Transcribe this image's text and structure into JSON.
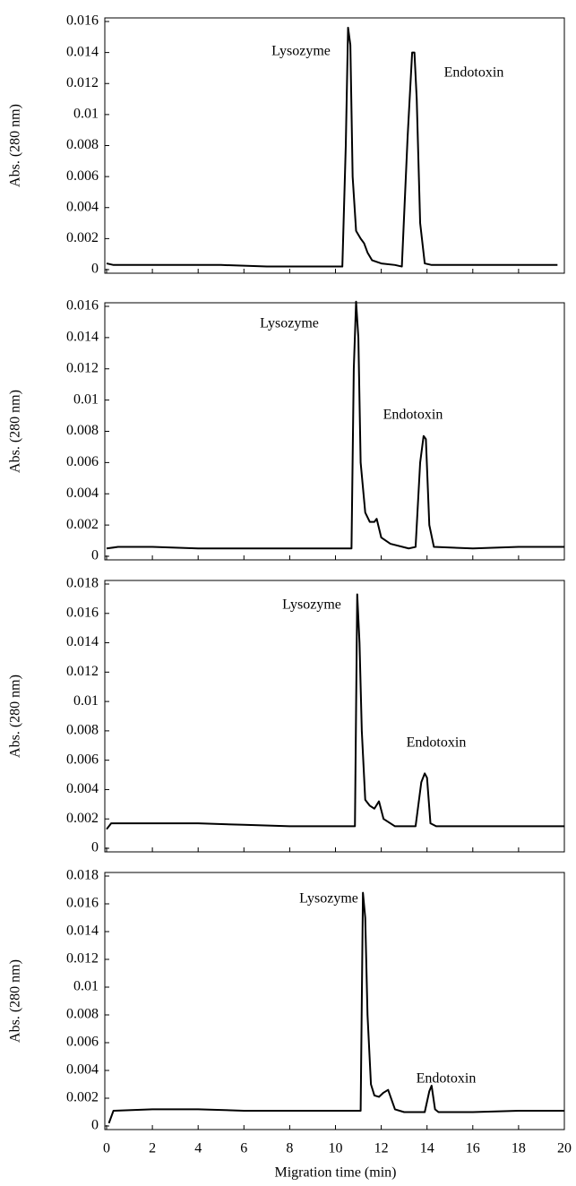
{
  "chart_data": [
    {
      "type": "line",
      "ylabel": "Abs. (280 nm)",
      "ylim": [
        0,
        0.016
      ],
      "yticks": [
        0,
        0.002,
        0.004,
        0.006,
        0.008,
        0.01,
        0.012,
        0.014,
        0.016
      ],
      "xlim": [
        0,
        20
      ],
      "xticks": [
        0,
        2,
        4,
        6,
        8,
        10,
        12,
        14,
        16,
        18,
        20
      ],
      "annotations": [
        "Lysozyme",
        "Endotoxin"
      ],
      "series": [
        {
          "color": "#000000",
          "x": [
            0,
            0.3,
            1,
            3,
            5,
            7,
            9,
            10.3,
            10.45,
            10.55,
            10.65,
            10.75,
            10.9,
            11.1,
            11.25,
            11.4,
            11.6,
            12,
            12.6,
            12.9,
            13.15,
            13.35,
            13.45,
            13.55,
            13.7,
            13.9,
            14.2,
            15,
            17,
            19,
            19.7
          ],
          "values": [
            0.0004,
            0.0003,
            0.0003,
            0.0003,
            0.0003,
            0.0002,
            0.0002,
            0.0002,
            0.008,
            0.0156,
            0.0145,
            0.006,
            0.0025,
            0.002,
            0.0017,
            0.0011,
            0.0006,
            0.0004,
            0.0003,
            0.0002,
            0.0085,
            0.014,
            0.014,
            0.011,
            0.003,
            0.0004,
            0.0003,
            0.0003,
            0.0003,
            0.0003,
            0.0003
          ]
        }
      ]
    },
    {
      "type": "line",
      "ylabel": "Abs. (280 nm)",
      "ylim": [
        0,
        0.016
      ],
      "yticks": [
        0,
        0.002,
        0.004,
        0.006,
        0.008,
        0.01,
        0.012,
        0.014,
        0.016
      ],
      "xlim": [
        0,
        20
      ],
      "xticks": [
        0,
        2,
        4,
        6,
        8,
        10,
        12,
        14,
        16,
        18,
        20
      ],
      "annotations": [
        "Lysozyme",
        "Endotoxin"
      ],
      "series": [
        {
          "color": "#000000",
          "x": [
            0,
            0.5,
            2,
            4,
            6,
            8,
            10,
            10.7,
            10.8,
            10.9,
            11,
            11.1,
            11.3,
            11.5,
            11.7,
            11.8,
            12,
            12.4,
            13.2,
            13.5,
            13.7,
            13.85,
            13.95,
            14.1,
            14.3,
            16,
            18,
            19,
            20
          ],
          "values": [
            0.0005,
            0.0006,
            0.0006,
            0.0005,
            0.0005,
            0.0005,
            0.0005,
            0.0005,
            0.012,
            0.0163,
            0.014,
            0.006,
            0.0028,
            0.0022,
            0.0022,
            0.0024,
            0.0012,
            0.0008,
            0.0005,
            0.0006,
            0.006,
            0.0077,
            0.0075,
            0.002,
            0.0006,
            0.0005,
            0.0006,
            0.0006,
            0.0006
          ]
        }
      ]
    },
    {
      "type": "line",
      "ylabel": "Abs. (280 nm)",
      "ylim": [
        0,
        0.018
      ],
      "yticks": [
        0,
        0.002,
        0.004,
        0.006,
        0.008,
        0.01,
        0.012,
        0.014,
        0.016,
        0.018
      ],
      "xlim": [
        0,
        20
      ],
      "xticks": [
        0,
        2,
        4,
        6,
        8,
        10,
        12,
        14,
        16,
        18,
        20
      ],
      "annotations": [
        "Lysozyme",
        "Endotoxin"
      ],
      "series": [
        {
          "color": "#000000",
          "x": [
            0,
            0.2,
            2,
            4,
            6,
            8,
            10,
            10.85,
            10.95,
            11.05,
            11.15,
            11.3,
            11.5,
            11.7,
            11.9,
            12.1,
            12.6,
            13.5,
            13.75,
            13.9,
            14,
            14.15,
            14.4,
            16,
            18,
            20
          ],
          "values": [
            0.0013,
            0.0017,
            0.0017,
            0.0017,
            0.0016,
            0.0015,
            0.0015,
            0.0015,
            0.0173,
            0.014,
            0.008,
            0.0033,
            0.0029,
            0.0027,
            0.0032,
            0.002,
            0.0015,
            0.0015,
            0.0045,
            0.0051,
            0.0048,
            0.0017,
            0.0015,
            0.0015,
            0.0015,
            0.0015
          ]
        }
      ]
    },
    {
      "type": "line",
      "ylabel": "Abs. (280 nm)",
      "xlabel": "Migration time (min)",
      "ylim": [
        0,
        0.018
      ],
      "yticks": [
        0,
        0.002,
        0.004,
        0.006,
        0.008,
        0.01,
        0.012,
        0.014,
        0.016,
        0.018
      ],
      "xlim": [
        0,
        20
      ],
      "xticks": [
        0,
        2,
        4,
        6,
        8,
        10,
        12,
        14,
        16,
        18,
        20
      ],
      "annotations": [
        "Lysozyme",
        "Endotoxin"
      ],
      "series": [
        {
          "color": "#000000",
          "x": [
            0.1,
            0.3,
            2,
            4,
            6,
            8,
            10,
            11.1,
            11.2,
            11.3,
            11.4,
            11.55,
            11.7,
            11.9,
            12.1,
            12.3,
            12.6,
            13,
            13.9,
            14.1,
            14.2,
            14.35,
            14.5,
            16,
            18,
            20
          ],
          "values": [
            0.0002,
            0.0011,
            0.0012,
            0.0012,
            0.0011,
            0.0011,
            0.0011,
            0.0011,
            0.0168,
            0.015,
            0.008,
            0.003,
            0.0022,
            0.0021,
            0.0024,
            0.0026,
            0.0012,
            0.001,
            0.001,
            0.0025,
            0.0029,
            0.0012,
            0.001,
            0.001,
            0.0011,
            0.0011
          ]
        }
      ]
    }
  ]
}
